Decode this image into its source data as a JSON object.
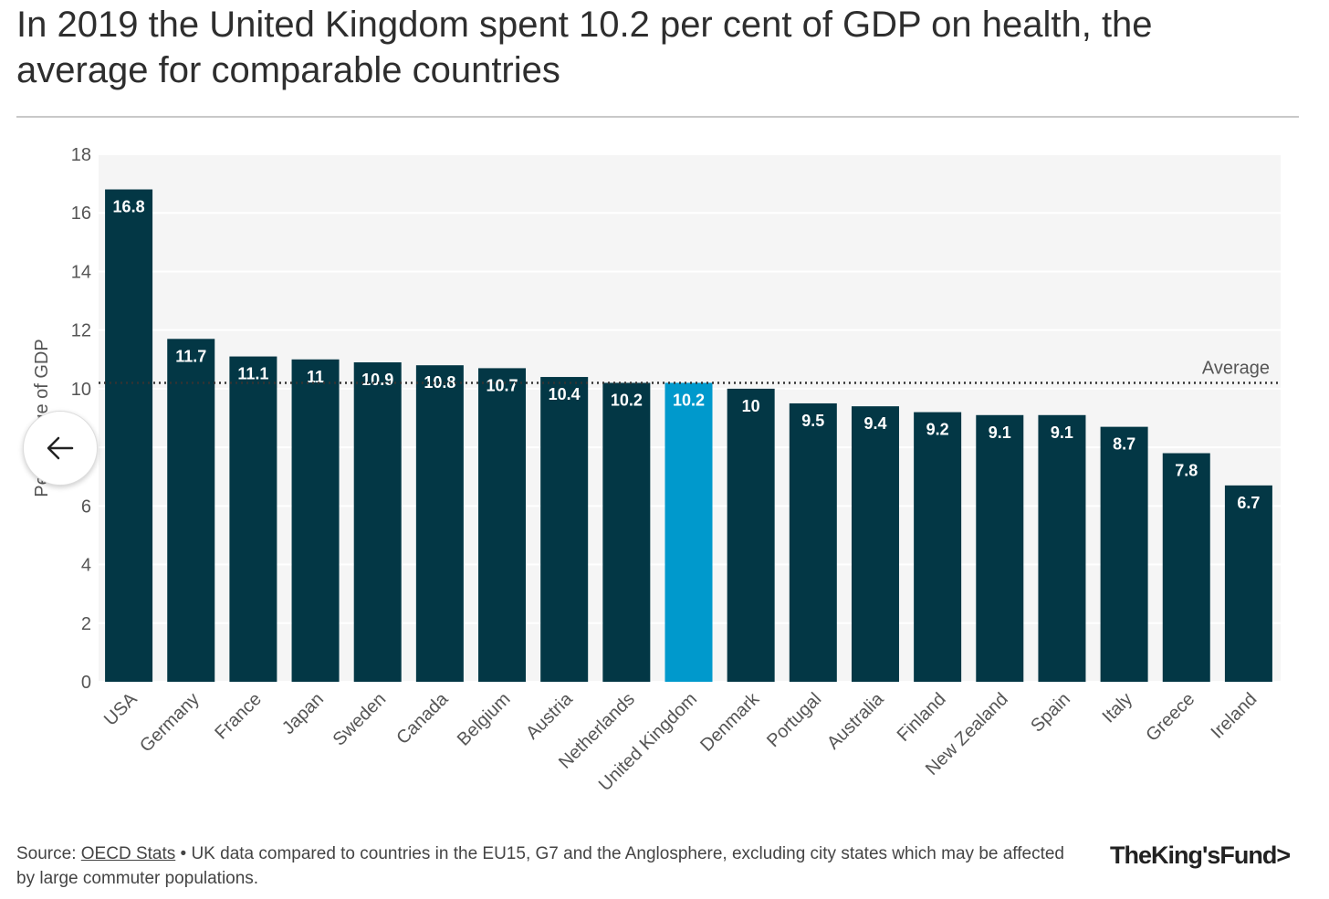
{
  "title": "In 2019 the United Kingdom spent 10.2 per cent of GDP on health, the average for comparable countries",
  "chart_data": {
    "type": "bar",
    "categories": [
      "USA",
      "Germany",
      "France",
      "Japan",
      "Sweden",
      "Canada",
      "Belgium",
      "Austria",
      "Netherlands",
      "United Kingdom",
      "Denmark",
      "Portugal",
      "Australia",
      "Finland",
      "New Zealand",
      "Spain",
      "Italy",
      "Greece",
      "Ireland"
    ],
    "values": [
      16.8,
      11.7,
      11.1,
      11,
      10.9,
      10.8,
      10.7,
      10.4,
      10.2,
      10.2,
      10,
      9.5,
      9.4,
      9.2,
      9.1,
      9.1,
      8.7,
      7.8,
      6.7
    ],
    "value_labels": [
      "16.8",
      "11.7",
      "11.1",
      "11",
      "10.9",
      "10.8",
      "10.7",
      "10.4",
      "10.2",
      "10.2",
      "10",
      "9.5",
      "9.4",
      "9.2",
      "9.1",
      "9.1",
      "8.7",
      "7.8",
      "6.7"
    ],
    "highlight_category": "United Kingdom",
    "average": 10.2,
    "average_label": "Average",
    "ylabel": "Percentage of GDP",
    "ylim": [
      0,
      18
    ],
    "yticks": [
      "0",
      "2",
      "4",
      "6",
      "8",
      "10",
      "12",
      "14",
      "16",
      "18"
    ],
    "yticks_visible": [
      true,
      true,
      true,
      true,
      false,
      true,
      true,
      true,
      true,
      true
    ],
    "grid": true,
    "colors": {
      "bar": "#033745",
      "highlight": "#0099cc",
      "plot_bg": "#f5f5f5"
    }
  },
  "source": {
    "prefix": "Source: ",
    "link": "OECD Stats",
    "text": " • UK data compared to countries in the EU15, G7 and the Anglosphere, excluding city states which may be affected by large commuter populations."
  },
  "logo": "TheKing'sFund>",
  "back_icon": "arrow-left-icon"
}
